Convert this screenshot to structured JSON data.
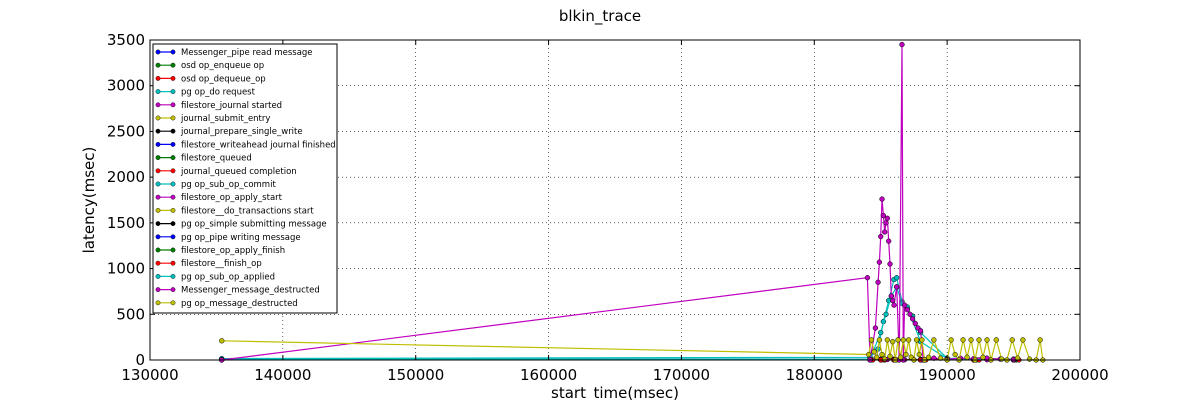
{
  "chart_data": {
    "type": "line",
    "title": "blkin_trace",
    "xlabel": "start_time(msec)",
    "ylabel": "latency(msec)",
    "xlim": [
      130000,
      200000
    ],
    "ylim": [
      0,
      3500
    ],
    "xticks": [
      130000,
      140000,
      150000,
      160000,
      170000,
      180000,
      190000,
      200000
    ],
    "yticks": [
      0,
      500,
      1000,
      1500,
      2000,
      2500,
      3000,
      3500
    ],
    "grid": true,
    "legend_position": "top-left",
    "series": [
      {
        "name": "Messenger_pipe read message",
        "color": "#0000ff",
        "x": [
          135400,
          184200,
          185000,
          186000,
          188000,
          192000,
          195000
        ],
        "y": [
          2,
          2,
          3,
          2,
          2,
          2,
          2
        ]
      },
      {
        "name": "osd op_enqueue op",
        "color": "#008000",
        "x": [
          135400,
          184300,
          185200,
          186100,
          188200,
          192200,
          195200
        ],
        "y": [
          1,
          1,
          2,
          1,
          1,
          1,
          1
        ]
      },
      {
        "name": "osd op_dequeue_op",
        "color": "#ff0000",
        "x": [
          135400,
          184400,
          185300,
          186200,
          188400,
          192400,
          195400
        ],
        "y": [
          1,
          1,
          1,
          1,
          1,
          1,
          1
        ]
      },
      {
        "name": "pg op_do request",
        "color": "#00bfbf",
        "x": [
          135400,
          184200,
          185000,
          186000,
          188000,
          192000,
          195000
        ],
        "y": [
          8,
          10,
          6,
          8,
          6,
          8,
          6
        ]
      },
      {
        "name": "filestore_journal started",
        "color": "#bf00bf",
        "x": [
          135400,
          184200,
          185000,
          185500,
          186000,
          186800,
          187500,
          188000,
          190000,
          193000,
          195000
        ],
        "y": [
          3,
          4,
          3,
          5,
          4,
          3,
          3,
          4,
          3,
          3,
          3
        ]
      },
      {
        "name": "journal_submit_entry",
        "color": "#bfbf00",
        "x": [
          135400,
          184200,
          185000,
          186000,
          188000,
          192000,
          195000
        ],
        "y": [
          5,
          6,
          4,
          5,
          4,
          5,
          4
        ]
      },
      {
        "name": "journal_prepare_single_write",
        "color": "#000000",
        "x": [
          135400,
          184200,
          185000,
          186000,
          188000,
          192000,
          195000
        ],
        "y": [
          1,
          1,
          1,
          1,
          1,
          1,
          1
        ]
      },
      {
        "name": "filestore_writeahead journal finished",
        "color": "#0000ff",
        "x": [
          135400,
          184200,
          185000,
          186000,
          188000,
          192000,
          195000
        ],
        "y": [
          4,
          5,
          6,
          5,
          4,
          5,
          4
        ]
      },
      {
        "name": "filestore_queued",
        "color": "#008000",
        "x": [
          135400,
          184200,
          185000,
          186000,
          188000,
          192000,
          195000
        ],
        "y": [
          1,
          1,
          1,
          1,
          1,
          1,
          1
        ]
      },
      {
        "name": "journal_queued completion",
        "color": "#ff0000",
        "x": [
          135400,
          184200,
          185000,
          186000,
          188000,
          192000,
          195000
        ],
        "y": [
          2,
          3,
          2,
          3,
          2,
          2,
          2
        ]
      },
      {
        "name": "pg op_sub_op_commit",
        "color": "#00bfbf",
        "x": [
          135400,
          184200,
          184800,
          185200,
          185600,
          186000,
          186200,
          186600,
          187000,
          187400,
          188000,
          190000,
          195000
        ],
        "y": [
          15,
          30,
          120,
          420,
          650,
          880,
          900,
          640,
          560,
          480,
          300,
          20,
          10
        ]
      },
      {
        "name": "filestore_op_apply_start",
        "color": "#bf00bf",
        "x": [
          135400,
          184200,
          185000,
          186000,
          188000,
          192000,
          195000
        ],
        "y": [
          2,
          2,
          3,
          2,
          2,
          2,
          2
        ]
      },
      {
        "name": "filestore__do_transactions start",
        "color": "#bfbf00",
        "x": [
          135400,
          184200,
          185000,
          186000,
          188000,
          192000,
          195000
        ],
        "y": [
          1,
          1,
          1,
          1,
          1,
          1,
          1
        ]
      },
      {
        "name": "pg op_simple submitting message",
        "color": "#000000",
        "x": [
          135400,
          184200,
          185000,
          186000,
          188000,
          192000,
          195000
        ],
        "y": [
          2,
          2,
          2,
          2,
          2,
          2,
          2
        ]
      },
      {
        "name": "pg op_pipe writing message",
        "color": "#0000ff",
        "x": [
          135400,
          184200,
          185000,
          186000,
          188000,
          192000,
          195000
        ],
        "y": [
          1,
          1,
          2,
          1,
          1,
          1,
          1
        ]
      },
      {
        "name": "filestore_op_apply_finish",
        "color": "#008000",
        "x": [
          135400,
          184200,
          185000,
          186000,
          188000,
          192000,
          195000
        ],
        "y": [
          3,
          3,
          4,
          3,
          3,
          3,
          3
        ]
      },
      {
        "name": "filestore__finish_op",
        "color": "#ff0000",
        "x": [
          135400,
          184200,
          185000,
          186000,
          188000,
          192000,
          195000
        ],
        "y": [
          1,
          1,
          1,
          1,
          1,
          1,
          1
        ]
      },
      {
        "name": "pg op_sub_op_applied",
        "color": "#00bfbf",
        "x": [
          135400,
          184200,
          185000,
          185400,
          185800,
          186200,
          186600,
          187000,
          188000,
          190000,
          195000
        ],
        "y": [
          5,
          8,
          300,
          500,
          700,
          800,
          620,
          580,
          200,
          15,
          8
        ]
      },
      {
        "name": "Messenger_message_destructed",
        "color": "#bf00bf",
        "x": [
          135400,
          184000,
          184200,
          184600,
          184800,
          184900,
          185000,
          185100,
          185200,
          185300,
          185400,
          185500,
          185600,
          185700,
          185800,
          185900,
          186000,
          186200,
          186400,
          186600,
          186700,
          186800,
          187000,
          187200,
          187400,
          187600,
          187800,
          188000,
          188200,
          189000,
          190000,
          191000,
          192000,
          193000,
          194000,
          195000
        ],
        "y": [
          0,
          900,
          0,
          350,
          850,
          1070,
          1350,
          1760,
          1580,
          1400,
          1500,
          1550,
          1300,
          1050,
          700,
          650,
          600,
          800,
          0,
          3450,
          0,
          600,
          550,
          500,
          450,
          400,
          350,
          320,
          0,
          20,
          10,
          20,
          15,
          20,
          10,
          5
        ]
      },
      {
        "name": "pg op_message_destructed",
        "color": "#bfbf00",
        "x": [
          135400,
          184100,
          184300,
          184500,
          184700,
          184900,
          185100,
          185300,
          185500,
          185700,
          185900,
          186100,
          186300,
          186500,
          186700,
          186900,
          187100,
          187300,
          187500,
          187700,
          187900,
          188100,
          188300,
          188600,
          189000,
          189500,
          190000,
          190300,
          190600,
          190900,
          191200,
          191500,
          191800,
          192100,
          192400,
          192700,
          193000,
          193300,
          193700,
          194100,
          194500,
          194900,
          195300,
          195700,
          196200,
          196700,
          197000,
          197200
        ],
        "y": [
          210,
          60,
          220,
          90,
          30,
          220,
          60,
          10,
          220,
          40,
          200,
          0,
          220,
          30,
          220,
          60,
          220,
          30,
          0,
          220,
          60,
          220,
          0,
          30,
          220,
          20,
          0,
          220,
          60,
          0,
          220,
          30,
          220,
          0,
          220,
          30,
          220,
          0,
          220,
          10,
          0,
          220,
          20,
          220,
          10,
          0,
          220,
          0
        ]
      }
    ]
  }
}
